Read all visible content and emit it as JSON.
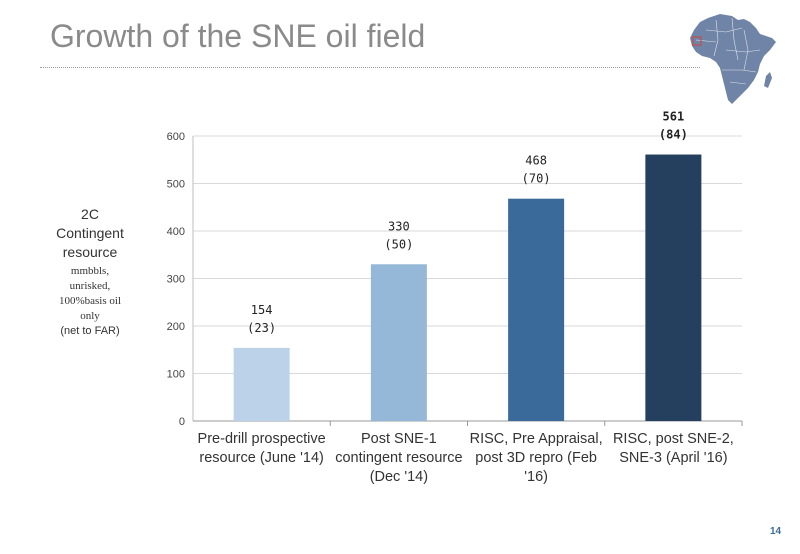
{
  "slide": {
    "title": "Growth of the SNE oil field",
    "page_number": "14"
  },
  "y_description": {
    "line1": "2C",
    "line2": "Contingent",
    "line3": "resource",
    "line4": "mmbbls,",
    "line5": "unrisked,",
    "line6": "100%basis oil",
    "line7": "only",
    "line8": "(net to FAR)"
  },
  "map": {
    "icon": "africa-map-icon",
    "fill": "#6f84a6",
    "marker_color": "#c0504d"
  },
  "chart_data": {
    "type": "bar",
    "categories": [
      [
        "Pre-drill prospective",
        "resource (June '14)"
      ],
      [
        "Post SNE-1",
        "contingent resource",
        "(Dec '14)"
      ],
      [
        "RISC, Pre Appraisal,",
        "post 3D repro (Feb",
        "'16)"
      ],
      [
        "RISC, post SNE-2,",
        "SNE-3 (April '16)"
      ]
    ],
    "values": [
      154,
      330,
      468,
      561
    ],
    "labels": [
      [
        "154",
        "(23)"
      ],
      [
        "330",
        "(50)"
      ],
      [
        "468",
        "(70)"
      ],
      [
        "561",
        "(84)"
      ]
    ],
    "bold_label_index": 3,
    "bar_colors": [
      "#bcd2e8",
      "#95b8d8",
      "#3a6a99",
      "#253f5e"
    ],
    "ylim": [
      0,
      600
    ],
    "yticks": [
      0,
      100,
      200,
      300,
      400,
      500,
      600
    ],
    "grid": true,
    "legend": "none"
  }
}
